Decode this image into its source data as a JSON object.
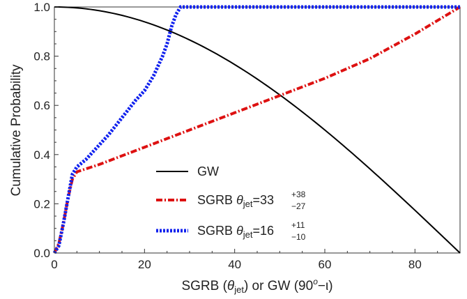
{
  "chart_data": {
    "type": "line",
    "xlabel": "SGRB (θjet) or GW (90o−ι)",
    "xlabel_parts": {
      "pre": "SGRB (",
      "theta": "θ",
      "sub": "jet",
      "mid": ") or GW (90",
      "sup": "o",
      "post": "−ι)"
    },
    "ylabel": "Cumulative Probability",
    "xlim": [
      0,
      90
    ],
    "ylim": [
      0,
      1.0
    ],
    "x_ticks": [
      0,
      20,
      40,
      60,
      80
    ],
    "x_tick_labels": [
      "0",
      "20",
      "40",
      "60",
      "80"
    ],
    "y_ticks": [
      0,
      0.2,
      0.4,
      0.6,
      0.8,
      1.0
    ],
    "y_tick_labels": [
      "0.0",
      "0.2",
      "0.4",
      "0.6",
      "0.8",
      "1.0"
    ],
    "grid": false,
    "legend_position": "center",
    "series": [
      {
        "name": "GW",
        "legend_label": {
          "plain": "GW"
        },
        "color": "#000000",
        "style": "solid",
        "function": "cos(x)",
        "x": [
          0,
          5,
          10,
          15,
          20,
          25,
          30,
          35,
          40,
          45,
          50,
          55,
          60,
          65,
          70,
          75,
          80,
          85,
          90
        ],
        "y": [
          1.0,
          0.996,
          0.985,
          0.966,
          0.94,
          0.906,
          0.866,
          0.819,
          0.766,
          0.707,
          0.643,
          0.574,
          0.5,
          0.423,
          0.342,
          0.259,
          0.174,
          0.087,
          0.0
        ]
      },
      {
        "name": "SGRB θjet=33+38−27",
        "legend_label": {
          "pre": "SGRB ",
          "theta": "θ",
          "sub": "jet",
          "eq": "=33",
          "sup": "+38",
          "lower": "−27"
        },
        "color": "#dd1111",
        "style": "dashdot",
        "x": [
          0,
          1,
          2,
          3,
          4,
          5,
          10,
          20,
          30,
          40,
          50,
          60,
          70,
          80,
          90
        ],
        "y": [
          0.0,
          0.04,
          0.12,
          0.22,
          0.3,
          0.33,
          0.36,
          0.43,
          0.5,
          0.57,
          0.64,
          0.71,
          0.79,
          0.89,
          1.0
        ]
      },
      {
        "name": "SGRB θjet=16+11−10",
        "legend_label": {
          "pre": "SGRB ",
          "theta": "θ",
          "sub": "jet",
          "eq": "=16",
          "sup": "+11",
          "lower": "−10"
        },
        "color": "#1122ee",
        "style": "dotted",
        "x": [
          0,
          1,
          2,
          3,
          4,
          5,
          7,
          10,
          12,
          15,
          18,
          20,
          22,
          24,
          25,
          26,
          27,
          28,
          30,
          40,
          50,
          60,
          70,
          80,
          90
        ],
        "y": [
          0.0,
          0.03,
          0.12,
          0.22,
          0.32,
          0.35,
          0.38,
          0.44,
          0.48,
          0.55,
          0.62,
          0.66,
          0.72,
          0.8,
          0.85,
          0.92,
          0.97,
          1.0,
          1.0,
          1.0,
          1.0,
          1.0,
          1.0,
          1.0,
          1.0
        ]
      }
    ]
  }
}
